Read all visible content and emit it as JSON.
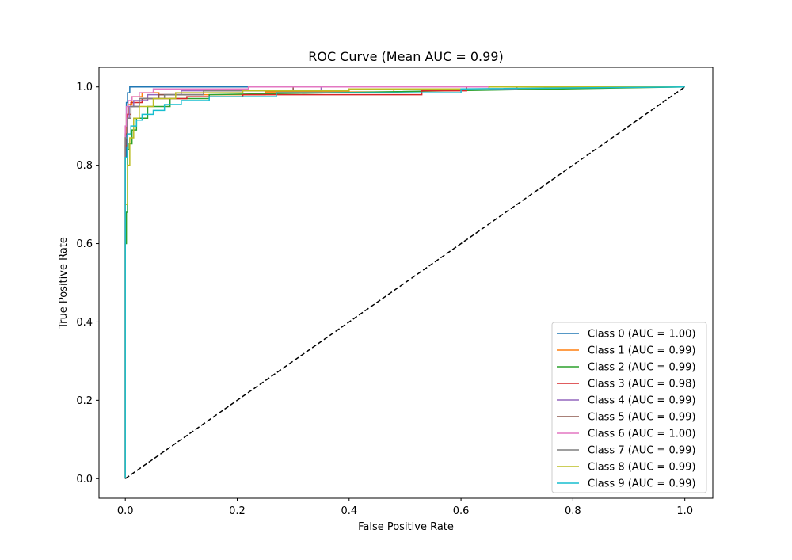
{
  "chart_data": {
    "type": "line",
    "title": "ROC Curve (Mean AUC = 0.99)",
    "xlabel": "False Positive Rate",
    "ylabel": "True Positive Rate",
    "xlim": [
      -0.047,
      1.05
    ],
    "ylim": [
      -0.05,
      1.05
    ],
    "xticks": [
      0.0,
      0.2,
      0.4,
      0.6,
      0.8,
      1.0
    ],
    "xtick_labels": [
      "0.0",
      "0.2",
      "0.4",
      "0.6",
      "0.8",
      "1.0"
    ],
    "yticks": [
      0.0,
      0.2,
      0.4,
      0.6,
      0.8,
      1.0
    ],
    "ytick_labels": [
      "0.0",
      "0.2",
      "0.4",
      "0.6",
      "0.8",
      "1.0"
    ],
    "grid": false,
    "legend_position": "lower-right",
    "diagonal": {
      "x": [
        0,
        1
      ],
      "y": [
        0,
        1
      ],
      "color": "#000000",
      "style": "dashed"
    },
    "series": [
      {
        "name": "Class 0 (AUC = 1.00)",
        "color": "#1f77b4",
        "x": [
          0,
          0.0,
          0.0,
          0.002,
          0.002,
          0.004,
          0.004,
          0.008,
          0.008,
          1.0
        ],
        "y": [
          0,
          0.55,
          0.82,
          0.82,
          0.96,
          0.96,
          0.985,
          0.985,
          1.0,
          1.0
        ]
      },
      {
        "name": "Class 1 (AUC = 0.99)",
        "color": "#ff7f0e",
        "x": [
          0,
          0.0,
          0.0,
          0.002,
          0.002,
          0.005,
          0.005,
          0.012,
          0.012,
          0.03,
          0.03,
          0.06,
          0.06,
          0.25,
          0.25,
          0.48,
          0.48,
          0.75,
          0.75,
          1.0
        ],
        "y": [
          0,
          0.6,
          0.88,
          0.88,
          0.93,
          0.93,
          0.955,
          0.955,
          0.975,
          0.975,
          0.985,
          0.985,
          0.98,
          0.98,
          0.987,
          0.987,
          0.995,
          0.995,
          1.0,
          1.0
        ]
      },
      {
        "name": "Class 2 (AUC = 0.99)",
        "color": "#2ca02c",
        "x": [
          0,
          0.0,
          0.0,
          0.002,
          0.002,
          0.004,
          0.004,
          0.007,
          0.007,
          0.012,
          0.012,
          0.02,
          0.02,
          0.04,
          0.04,
          0.08,
          0.08,
          0.15,
          0.15,
          1.0
        ],
        "y": [
          0,
          0.23,
          0.6,
          0.6,
          0.68,
          0.68,
          0.84,
          0.84,
          0.855,
          0.855,
          0.89,
          0.89,
          0.92,
          0.92,
          0.95,
          0.95,
          0.97,
          0.97,
          0.98,
          1.0
        ]
      },
      {
        "name": "Class 3 (AUC = 0.98)",
        "color": "#d62728",
        "x": [
          0,
          0.0,
          0.0,
          0.003,
          0.003,
          0.01,
          0.01,
          0.03,
          0.03,
          0.11,
          0.11,
          0.21,
          0.21,
          0.43,
          0.43,
          0.53,
          0.53,
          0.61,
          0.61,
          1.0
        ],
        "y": [
          0,
          0.6,
          0.85,
          0.85,
          0.93,
          0.93,
          0.96,
          0.96,
          0.97,
          0.97,
          0.975,
          0.975,
          0.98,
          0.98,
          0.98,
          0.98,
          0.99,
          0.99,
          1.0,
          1.0
        ]
      },
      {
        "name": "Class 4 (AUC = 0.99)",
        "color": "#9467bd",
        "x": [
          0,
          0.0,
          0.0,
          0.003,
          0.003,
          0.007,
          0.007,
          0.015,
          0.015,
          0.04,
          0.04,
          0.1,
          0.1,
          0.35,
          0.35,
          1.0
        ],
        "y": [
          0,
          0.7,
          0.87,
          0.87,
          0.92,
          0.92,
          0.95,
          0.95,
          0.965,
          0.965,
          0.98,
          0.98,
          0.99,
          0.99,
          1.0,
          1.0
        ]
      },
      {
        "name": "Class 5 (AUC = 0.99)",
        "color": "#8c564b",
        "x": [
          0,
          0.0,
          0.0,
          0.004,
          0.004,
          0.01,
          0.01,
          0.025,
          0.025,
          0.06,
          0.06,
          0.14,
          0.14,
          0.3,
          0.3,
          1.0
        ],
        "y": [
          0,
          0.72,
          0.88,
          0.88,
          0.92,
          0.92,
          0.95,
          0.95,
          0.97,
          0.97,
          0.98,
          0.98,
          0.99,
          0.99,
          1.0,
          1.0
        ]
      },
      {
        "name": "Class 6 (AUC = 1.00)",
        "color": "#e377c2",
        "x": [
          0,
          0.0,
          0.0,
          0.002,
          0.002,
          0.005,
          0.005,
          0.012,
          0.012,
          0.025,
          0.025,
          0.05,
          0.05,
          0.22,
          0.22,
          1.0
        ],
        "y": [
          0,
          0.75,
          0.9,
          0.9,
          0.95,
          0.95,
          0.965,
          0.965,
          0.975,
          0.975,
          0.985,
          0.985,
          0.995,
          0.995,
          1.0,
          1.0
        ]
      },
      {
        "name": "Class 7 (AUC = 0.99)",
        "color": "#7f7f7f",
        "x": [
          0,
          0.0,
          0.0,
          0.004,
          0.004,
          0.01,
          0.01,
          0.025,
          0.025,
          0.07,
          0.07,
          0.14,
          0.14,
          0.4,
          0.4,
          0.7,
          0.7,
          1.0
        ],
        "y": [
          0,
          0.7,
          0.87,
          0.87,
          0.92,
          0.92,
          0.95,
          0.95,
          0.97,
          0.97,
          0.98,
          0.98,
          0.99,
          0.99,
          0.995,
          0.995,
          1.0,
          1.0
        ]
      },
      {
        "name": "Class 8 (AUC = 0.99)",
        "color": "#bcbd22",
        "x": [
          0,
          0.0,
          0.0,
          0.004,
          0.004,
          0.008,
          0.008,
          0.015,
          0.015,
          0.025,
          0.025,
          0.05,
          0.05,
          0.09,
          0.09,
          0.21,
          0.21,
          0.4,
          0.4,
          0.65,
          0.65,
          1.0
        ],
        "y": [
          0,
          0.5,
          0.7,
          0.7,
          0.8,
          0.8,
          0.87,
          0.87,
          0.92,
          0.92,
          0.95,
          0.95,
          0.97,
          0.97,
          0.985,
          0.985,
          0.99,
          0.99,
          0.995,
          0.995,
          1.0,
          1.0
        ]
      },
      {
        "name": "Class 9 (AUC = 0.99)",
        "color": "#17becf",
        "x": [
          0,
          0.0,
          0.0,
          0.004,
          0.004,
          0.01,
          0.01,
          0.02,
          0.02,
          0.03,
          0.03,
          0.05,
          0.05,
          0.07,
          0.07,
          0.1,
          0.1,
          0.15,
          0.15,
          0.27,
          0.27,
          0.6,
          0.6,
          1.0
        ],
        "y": [
          0,
          0.6,
          0.82,
          0.82,
          0.88,
          0.88,
          0.9,
          0.9,
          0.915,
          0.915,
          0.93,
          0.93,
          0.94,
          0.94,
          0.955,
          0.955,
          0.965,
          0.965,
          0.975,
          0.975,
          0.985,
          0.985,
          0.995,
          1.0
        ]
      }
    ]
  }
}
